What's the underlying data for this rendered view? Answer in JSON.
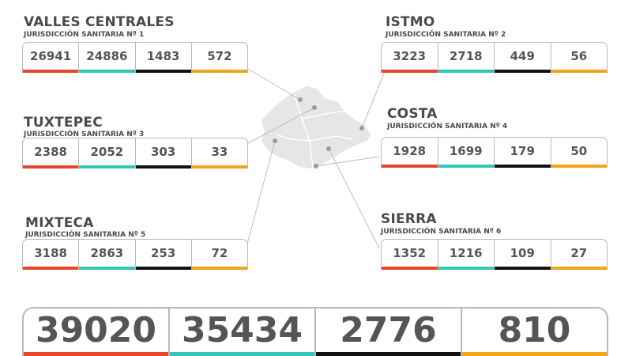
{
  "colors": {
    "confirmados": "#e8462a",
    "recuperados": "#33c6b8",
    "defunciones": "#111111",
    "activos": "#f2a516"
  },
  "jurisdictions": [
    {
      "name": "VALLES CENTRALES",
      "subtitle": "JURISDICCIÓN SANITARIA Nº 1",
      "values": [
        "26941",
        "24886",
        "1483",
        "572"
      ]
    },
    {
      "name": "ISTMO",
      "subtitle": "JURISDICCIÓN SANITARIA Nº 2",
      "values": [
        "3223",
        "2718",
        "449",
        "56"
      ]
    },
    {
      "name": "TUXTEPEC",
      "subtitle": "JURISDICCIÓN SANITARIA Nº 3",
      "values": [
        "2388",
        "2052",
        "303",
        "33"
      ]
    },
    {
      "name": "COSTA",
      "subtitle": "JURISDICCIÓN SANITARIA Nº 4",
      "values": [
        "1928",
        "1699",
        "179",
        "50"
      ]
    },
    {
      "name": "MIXTECA",
      "subtitle": "JURISDICCIÓN SANITARIA Nº 5",
      "values": [
        "3188",
        "2863",
        "253",
        "72"
      ]
    },
    {
      "name": "SIERRA",
      "subtitle": "JURISDICCIÓN SANITARIA Nº 6",
      "values": [
        "1352",
        "1216",
        "109",
        "27"
      ]
    }
  ],
  "totals": [
    "39020",
    "35434",
    "2776",
    "810"
  ]
}
